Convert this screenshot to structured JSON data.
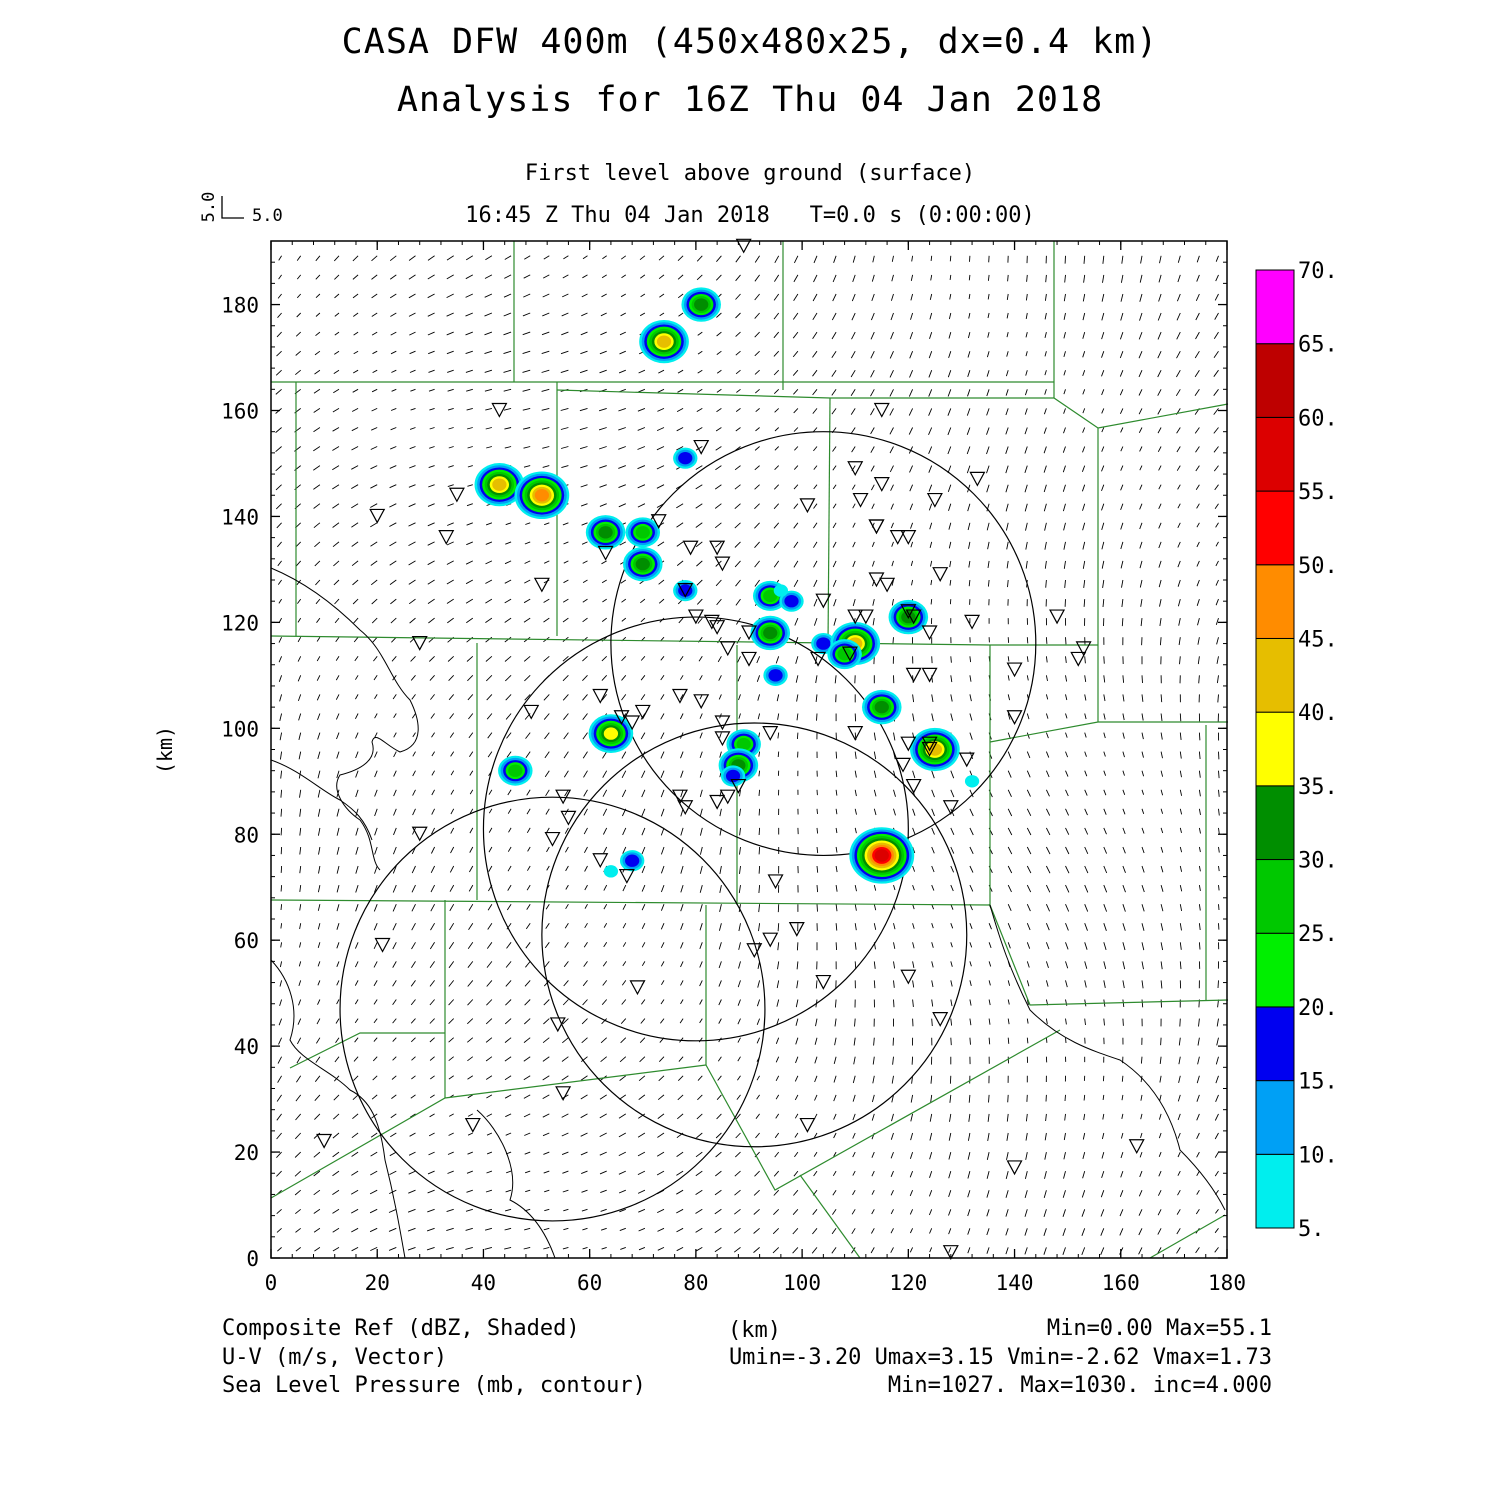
{
  "header": {
    "title_line1": "CASA DFW 400m (450x480x25, dx=0.4 km)",
    "title_line2": "Analysis for 16Z Thu 04 Jan 2018",
    "subtitle": "First level above ground (surface)",
    "valid_time": "16:45 Z Thu 04 Jan 2018   T=0.0 s (0:00:00)"
  },
  "vector_key": {
    "u_label": "5.0",
    "v_label": "5.0"
  },
  "axes": {
    "xlabel": "(km)",
    "ylabel": "(km)",
    "xlim": [
      0,
      180
    ],
    "ylim": [
      0,
      192
    ],
    "x_ticks": [
      "0",
      "20",
      "40",
      "60",
      "80",
      "100",
      "120",
      "140",
      "160",
      "180"
    ],
    "y_ticks": [
      "0",
      "20",
      "40",
      "60",
      "80",
      "100",
      "120",
      "140",
      "160",
      "180"
    ]
  },
  "colorbar": {
    "labels": [
      "5.",
      "10.",
      "15.",
      "20.",
      "25.",
      "30.",
      "35.",
      "40.",
      "45.",
      "50.",
      "55.",
      "60.",
      "65.",
      "70."
    ],
    "colors": [
      "#00eeee",
      "#00a0f5",
      "#0000f0",
      "#00ef00",
      "#00c800",
      "#008e00",
      "#ffff00",
      "#e6be00",
      "#ff8c00",
      "#ff0000",
      "#dc0000",
      "#be0000",
      "#ff00ff"
    ]
  },
  "footer": {
    "left1": "Composite Ref (dBZ, Shaded)",
    "left2": "U-V (m/s, Vector)",
    "left3": "Sea Level Pressure (mb, contour)",
    "center": "(km)",
    "right1": "Min=0.00 Max=55.1",
    "right2": "Umin=-3.20 Umax=3.15 Vmin=-2.62 Vmax=1.73",
    "right3": "Min=1027. Max=1030. inc=4.000"
  },
  "map_data": {
    "radar_rings_km": [
      {
        "cx": 104,
        "cy": 116,
        "r": 40
      },
      {
        "cx": 80,
        "cy": 81,
        "r": 40
      },
      {
        "cx": 91,
        "cy": 61,
        "r": 40
      },
      {
        "cx": 53,
        "cy": 47,
        "r": 40
      }
    ],
    "stations_km": [
      [
        89,
        191
      ],
      [
        43,
        160
      ],
      [
        115,
        160
      ],
      [
        81,
        153
      ],
      [
        110,
        149
      ],
      [
        115,
        146
      ],
      [
        35,
        144
      ],
      [
        20,
        140
      ],
      [
        125,
        143
      ],
      [
        101,
        142
      ],
      [
        133,
        147
      ],
      [
        114,
        138
      ],
      [
        33,
        136
      ],
      [
        111,
        143
      ],
      [
        118,
        136
      ],
      [
        120,
        136
      ],
      [
        114,
        138
      ],
      [
        63,
        133
      ],
      [
        79,
        134
      ],
      [
        84,
        134
      ],
      [
        85,
        131
      ],
      [
        73,
        139
      ],
      [
        51,
        127
      ],
      [
        126,
        129
      ],
      [
        114,
        128
      ],
      [
        116,
        127
      ],
      [
        78,
        126
      ],
      [
        80,
        121
      ],
      [
        83,
        120
      ],
      [
        84,
        119
      ],
      [
        120,
        122
      ],
      [
        121,
        121
      ],
      [
        104,
        124
      ],
      [
        110,
        121
      ],
      [
        112,
        121
      ],
      [
        132,
        120
      ],
      [
        148,
        121
      ],
      [
        28,
        116
      ],
      [
        86,
        115
      ],
      [
        90,
        118
      ],
      [
        90,
        113
      ],
      [
        103,
        113
      ],
      [
        109,
        114
      ],
      [
        124,
        118
      ],
      [
        152,
        113
      ],
      [
        140,
        111
      ],
      [
        153,
        115
      ],
      [
        121,
        110
      ],
      [
        124,
        110
      ],
      [
        62,
        106
      ],
      [
        77,
        106
      ],
      [
        81,
        105
      ],
      [
        49,
        103
      ],
      [
        66,
        102
      ],
      [
        70,
        103
      ],
      [
        68,
        101
      ],
      [
        85,
        101
      ],
      [
        110,
        99
      ],
      [
        124,
        96
      ],
      [
        124,
        97
      ],
      [
        140,
        102
      ],
      [
        120,
        97
      ],
      [
        85,
        98
      ],
      [
        94,
        99
      ],
      [
        131,
        94
      ],
      [
        119,
        93
      ],
      [
        88,
        89
      ],
      [
        86,
        87
      ],
      [
        84,
        86
      ],
      [
        77,
        87
      ],
      [
        78,
        85
      ],
      [
        55,
        87
      ],
      [
        56,
        83
      ],
      [
        128,
        85
      ],
      [
        121,
        89
      ],
      [
        53,
        79
      ],
      [
        28,
        80
      ],
      [
        62,
        75
      ],
      [
        67,
        72
      ],
      [
        95,
        71
      ],
      [
        21,
        59
      ],
      [
        94,
        60
      ],
      [
        99,
        62
      ],
      [
        91,
        58
      ],
      [
        69,
        51
      ],
      [
        104,
        52
      ],
      [
        120,
        53
      ],
      [
        126,
        45
      ],
      [
        54,
        44
      ],
      [
        55,
        31
      ],
      [
        38,
        25
      ],
      [
        101,
        25
      ],
      [
        10,
        22
      ],
      [
        140,
        17
      ],
      [
        163,
        21
      ],
      [
        128,
        1
      ]
    ],
    "reflectivity_cells_km": [
      {
        "x": 81,
        "y": 180,
        "dbz": 30
      },
      {
        "x": 74,
        "y": 173,
        "dbz": 42
      },
      {
        "x": 78,
        "y": 151,
        "dbz": 18
      },
      {
        "x": 43,
        "y": 146,
        "dbz": 42
      },
      {
        "x": 51,
        "y": 144,
        "dbz": 45
      },
      {
        "x": 63,
        "y": 137,
        "dbz": 32
      },
      {
        "x": 70,
        "y": 137,
        "dbz": 28
      },
      {
        "x": 70,
        "y": 131,
        "dbz": 32
      },
      {
        "x": 78,
        "y": 126,
        "dbz": 15
      },
      {
        "x": 94,
        "y": 125,
        "dbz": 28
      },
      {
        "x": 98,
        "y": 124,
        "dbz": 15
      },
      {
        "x": 96,
        "y": 126,
        "dbz": 8
      },
      {
        "x": 94,
        "y": 118,
        "dbz": 30
      },
      {
        "x": 104,
        "y": 116,
        "dbz": 15
      },
      {
        "x": 110,
        "y": 116,
        "dbz": 40
      },
      {
        "x": 108,
        "y": 114,
        "dbz": 25
      },
      {
        "x": 120,
        "y": 121,
        "dbz": 32
      },
      {
        "x": 95,
        "y": 110,
        "dbz": 18
      },
      {
        "x": 115,
        "y": 104,
        "dbz": 30
      },
      {
        "x": 64,
        "y": 99,
        "dbz": 38
      },
      {
        "x": 46,
        "y": 92,
        "dbz": 25
      },
      {
        "x": 89,
        "y": 97,
        "dbz": 28
      },
      {
        "x": 88,
        "y": 93,
        "dbz": 32
      },
      {
        "x": 87,
        "y": 91,
        "dbz": 18
      },
      {
        "x": 125,
        "y": 96,
        "dbz": 40
      },
      {
        "x": 132,
        "y": 90,
        "dbz": 8
      },
      {
        "x": 115,
        "y": 78,
        "dbz": 30
      },
      {
        "x": 115,
        "y": 76,
        "dbz": 55
      },
      {
        "x": 68,
        "y": 75,
        "dbz": 18
      },
      {
        "x": 64,
        "y": 73,
        "dbz": 8
      }
    ]
  }
}
